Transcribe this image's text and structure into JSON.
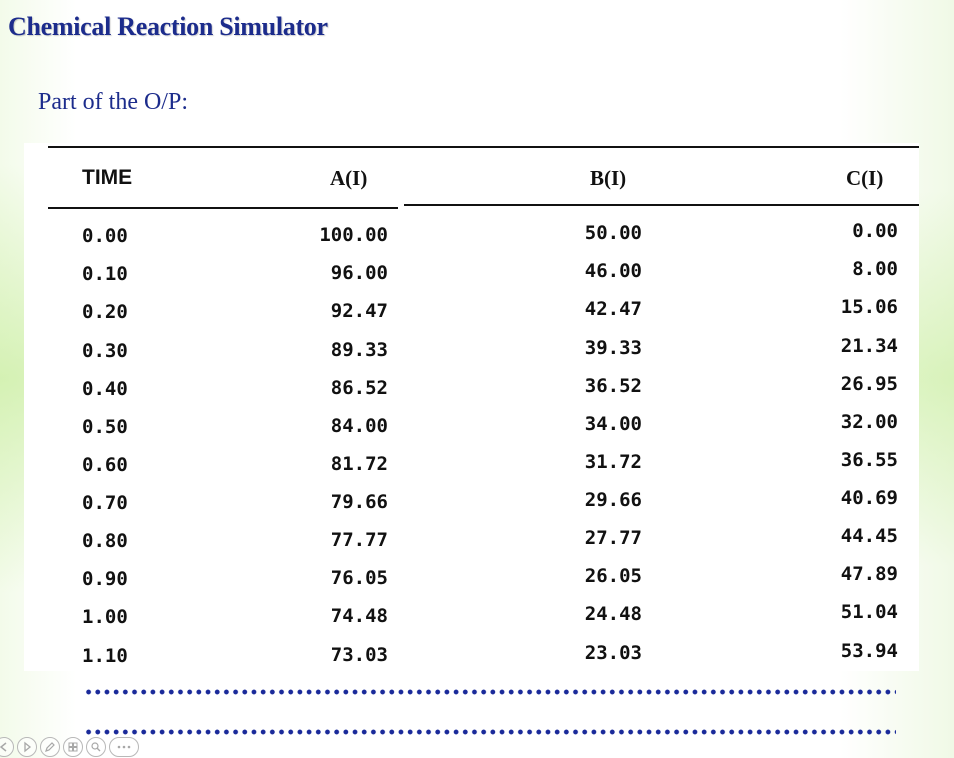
{
  "slide": {
    "title": "Chemical Reaction Simulator",
    "subtitle": "Part of the O/P:"
  },
  "table": {
    "headers": {
      "time": "TIME",
      "a": "A(I)",
      "b": "B(I)",
      "c": "C(I)"
    },
    "rows": [
      {
        "time": "0.00",
        "a": "100.00",
        "b": "50.00",
        "c": "0.00"
      },
      {
        "time": "0.10",
        "a": "96.00",
        "b": "46.00",
        "c": "8.00"
      },
      {
        "time": "0.20",
        "a": "92.47",
        "b": "42.47",
        "c": "15.06"
      },
      {
        "time": "0.30",
        "a": "89.33",
        "b": "39.33",
        "c": "21.34"
      },
      {
        "time": "0.40",
        "a": "86.52",
        "b": "36.52",
        "c": "26.95"
      },
      {
        "time": "0.50",
        "a": "84.00",
        "b": "34.00",
        "c": "32.00"
      },
      {
        "time": "0.60",
        "a": "81.72",
        "b": "31.72",
        "c": "36.55"
      },
      {
        "time": "0.70",
        "a": "79.66",
        "b": "29.66",
        "c": "40.69"
      },
      {
        "time": "0.80",
        "a": "77.77",
        "b": "27.77",
        "c": "44.45"
      },
      {
        "time": "0.90",
        "a": "76.05",
        "b": "26.05",
        "c": "47.89"
      },
      {
        "time": "1.00",
        "a": "74.48",
        "b": "24.48",
        "c": "51.04"
      },
      {
        "time": "1.10",
        "a": "73.03",
        "b": "23.03",
        "c": "53.94"
      }
    ]
  },
  "controls": [
    {
      "name": "previous-slide-icon"
    },
    {
      "name": "play-icon"
    },
    {
      "name": "pen-icon"
    },
    {
      "name": "slides-grid-icon"
    },
    {
      "name": "zoom-icon"
    },
    {
      "name": "more-options-icon"
    }
  ],
  "colors": {
    "title": "#1c2c8c",
    "dots": "#1a2a9a",
    "background_accent": "#c4ec96"
  }
}
